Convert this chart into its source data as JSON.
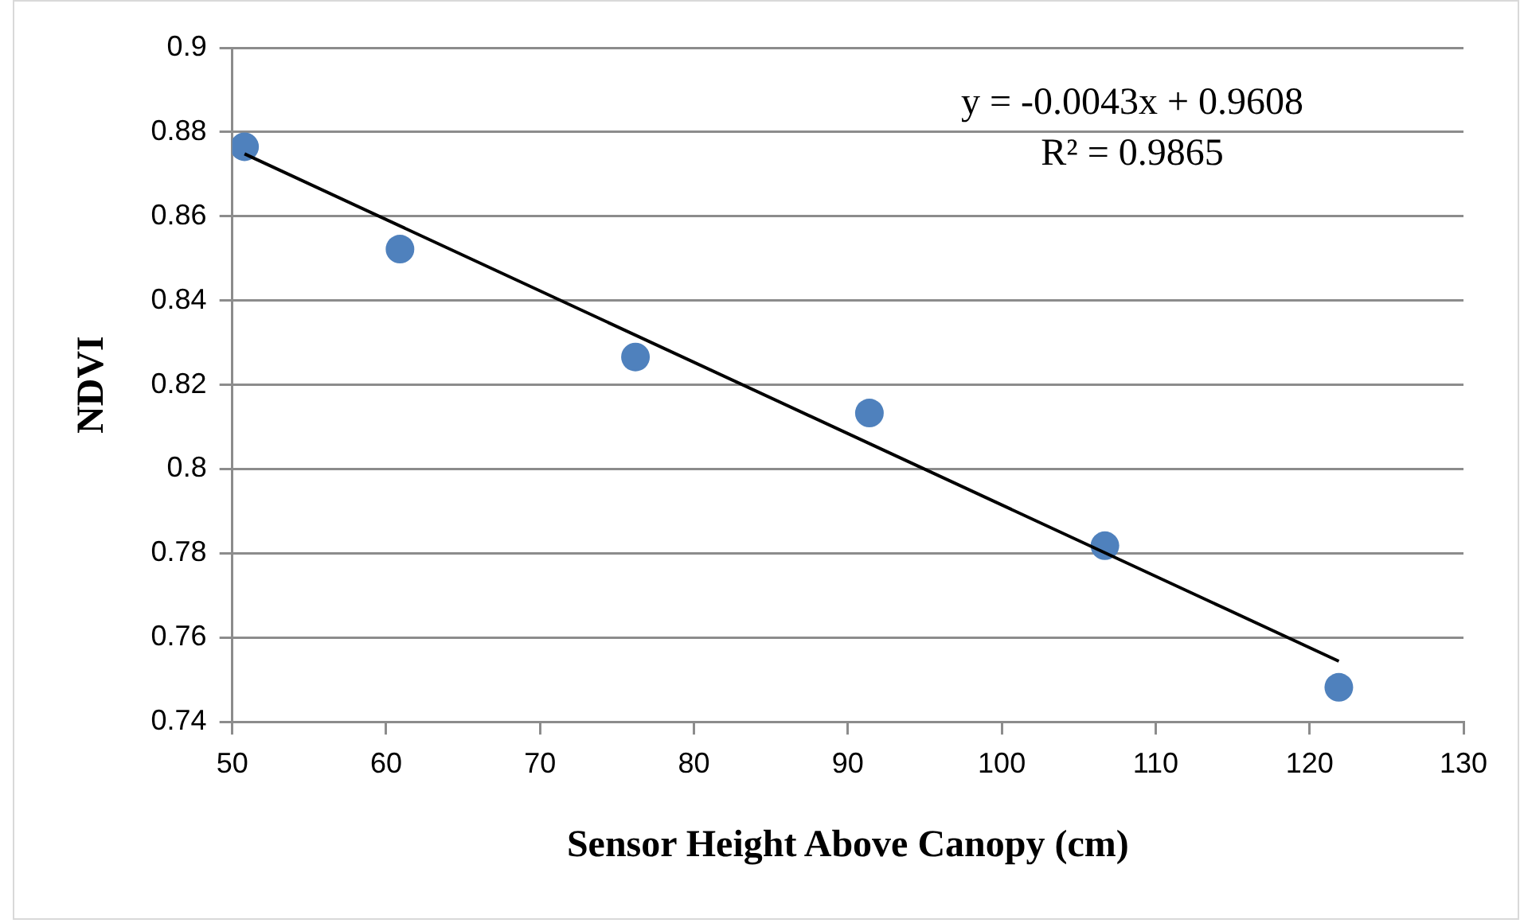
{
  "chart_data": {
    "type": "scatter",
    "xlabel": "Sensor Height Above Canopy (cm)",
    "ylabel": "NDVI",
    "xlim": [
      50,
      130
    ],
    "xticks": [
      50,
      60,
      70,
      80,
      90,
      100,
      110,
      120,
      130
    ],
    "ylim": [
      0.74,
      0.9
    ],
    "yticks": [
      0.74,
      0.76,
      0.78,
      0.8,
      0.82,
      0.84,
      0.86,
      0.88,
      0.9
    ],
    "grid": "y",
    "legend": false,
    "marker": "circle",
    "series": [
      {
        "color": "#4f81bd",
        "x": [
          50.8,
          60.9,
          76.2,
          91.4,
          106.7,
          121.9
        ],
        "values": [
          0.8765,
          0.8522,
          0.8266,
          0.8133,
          0.7818,
          0.7482
        ]
      },
      {
        "type": "line",
        "color": "#000000",
        "marker": "none",
        "x": [
          50.8,
          121.9
        ],
        "values": [
          0.8748,
          0.7544
        ]
      }
    ],
    "annotations": [
      "y = -0.0043x + 0.9608",
      "R² = 0.9865"
    ]
  }
}
